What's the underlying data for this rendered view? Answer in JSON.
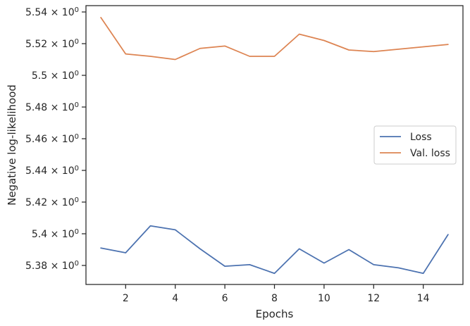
{
  "chart_data": {
    "type": "line",
    "title": "",
    "xlabel": "Epochs",
    "ylabel": "Negative log-likelihood",
    "xlim": [
      0.4,
      15.6
    ],
    "ylim": [
      5.368,
      5.544
    ],
    "x_ticks": [
      {
        "value": 2,
        "label": "2"
      },
      {
        "value": 4,
        "label": "4"
      },
      {
        "value": 6,
        "label": "6"
      },
      {
        "value": 8,
        "label": "8"
      },
      {
        "value": 10,
        "label": "10"
      },
      {
        "value": 12,
        "label": "12"
      },
      {
        "value": 14,
        "label": "14"
      }
    ],
    "y_ticks": [
      {
        "value": 5.38,
        "mantissa": "5.38",
        "base": "10",
        "exp": "0"
      },
      {
        "value": 5.4,
        "mantissa": "5.4",
        "base": "10",
        "exp": "0"
      },
      {
        "value": 5.42,
        "mantissa": "5.42",
        "base": "10",
        "exp": "0"
      },
      {
        "value": 5.44,
        "mantissa": "5.44",
        "base": "10",
        "exp": "0"
      },
      {
        "value": 5.46,
        "mantissa": "5.46",
        "base": "10",
        "exp": "0"
      },
      {
        "value": 5.48,
        "mantissa": "5.48",
        "base": "10",
        "exp": "0"
      },
      {
        "value": 5.5,
        "mantissa": "5.5",
        "base": "10",
        "exp": "0"
      },
      {
        "value": 5.52,
        "mantissa": "5.52",
        "base": "10",
        "exp": "0"
      },
      {
        "value": 5.54,
        "mantissa": "5.54",
        "base": "10",
        "exp": "0"
      }
    ],
    "x": [
      1,
      2,
      3,
      4,
      5,
      6,
      7,
      8,
      9,
      10,
      11,
      12,
      13,
      14,
      15
    ],
    "series": [
      {
        "name": "Loss",
        "color": "#4c72b0",
        "values": [
          5.391,
          5.388,
          5.405,
          5.4025,
          5.3905,
          5.3795,
          5.3805,
          5.375,
          5.3905,
          5.3815,
          5.39,
          5.3805,
          5.3785,
          5.375,
          5.3995
        ]
      },
      {
        "name": "Val. loss",
        "color": "#dd8452",
        "values": [
          5.5365,
          5.5135,
          5.512,
          5.51,
          5.517,
          5.5185,
          5.512,
          5.512,
          5.526,
          5.522,
          5.516,
          5.515,
          5.5165,
          5.518,
          5.5195
        ]
      }
    ],
    "legend_position": "center-right",
    "grid": false
  }
}
